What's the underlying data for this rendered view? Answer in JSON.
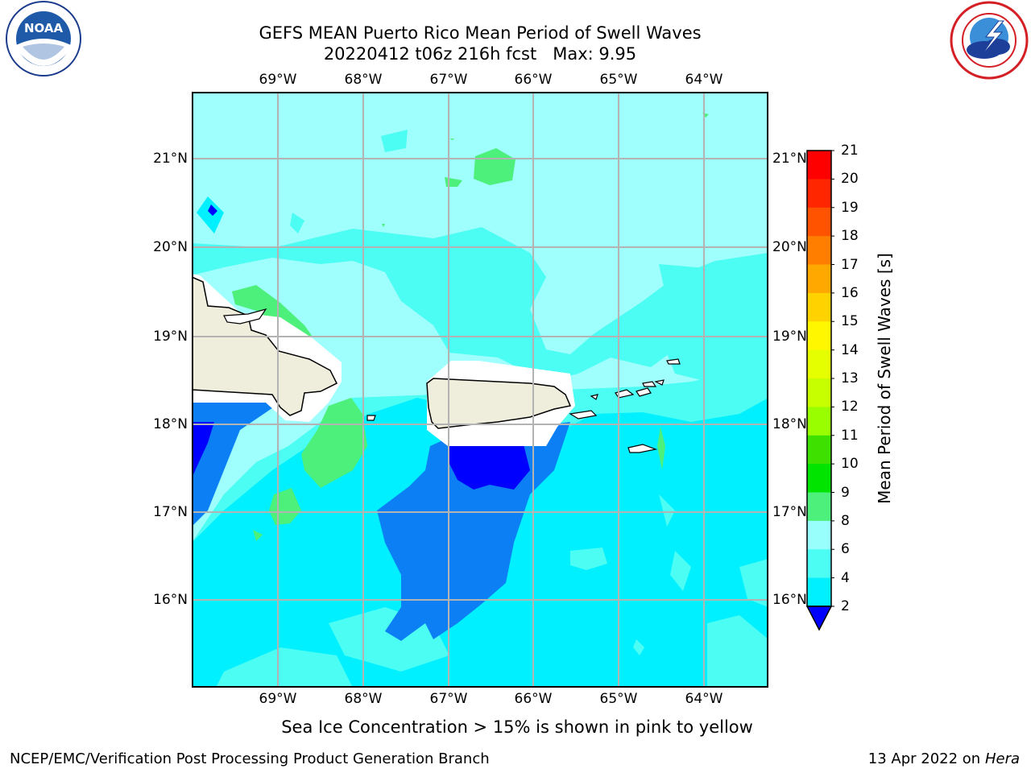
{
  "header": {
    "title_line1": "GEFS MEAN Puerto Rico Mean Period of Swell Waves",
    "title_line2": "20220412 t06z 216h fcst   Max: 9.95"
  },
  "logos": {
    "left_icon": "noaa-logo",
    "left_text": "NOAA",
    "left_ring_text": "NATIONAL OCEANIC AND ATMOSPHERIC ADMINISTRATION · U.S. DEPARTMENT OF COMMERCE",
    "right_icon": "nws-logo",
    "right_ring_text": "NATIONAL WEATHER SERVICE"
  },
  "map": {
    "lon_labels": [
      "69°W",
      "68°W",
      "67°W",
      "66°W",
      "65°W",
      "64°W"
    ],
    "lat_labels": [
      "21°N",
      "20°N",
      "19°N",
      "18°N",
      "17°N",
      "16°N"
    ],
    "ocean_color": "#9ffffd",
    "land_color": "#efeedd"
  },
  "colorbar": {
    "label": "Mean Period of Swell Waves [s]",
    "ticks": [
      "21",
      "20",
      "19",
      "18",
      "17",
      "16",
      "15",
      "14",
      "13",
      "12",
      "11",
      "10",
      "9",
      "8",
      "6",
      "4",
      "2"
    ],
    "colors": [
      "#ff0000",
      "#ff2600",
      "#ff5300",
      "#ff7e00",
      "#ffa800",
      "#ffd200",
      "#fff700",
      "#e6ff00",
      "#c8ff00",
      "#99ff00",
      "#3ee000",
      "#00e400",
      "#4cf07a",
      "#99fffd",
      "#4cfdf3",
      "#00f0ff",
      "#0c7ff5"
    ],
    "extend_color": "#0000ff"
  },
  "note": "Sea Ice Concentration > 15% is shown in pink to yellow",
  "footer": {
    "left": "NCEP/EMC/Verification Post Processing Product Generation Branch",
    "date": "13 Apr 2022 on ",
    "host": "Hera"
  }
}
